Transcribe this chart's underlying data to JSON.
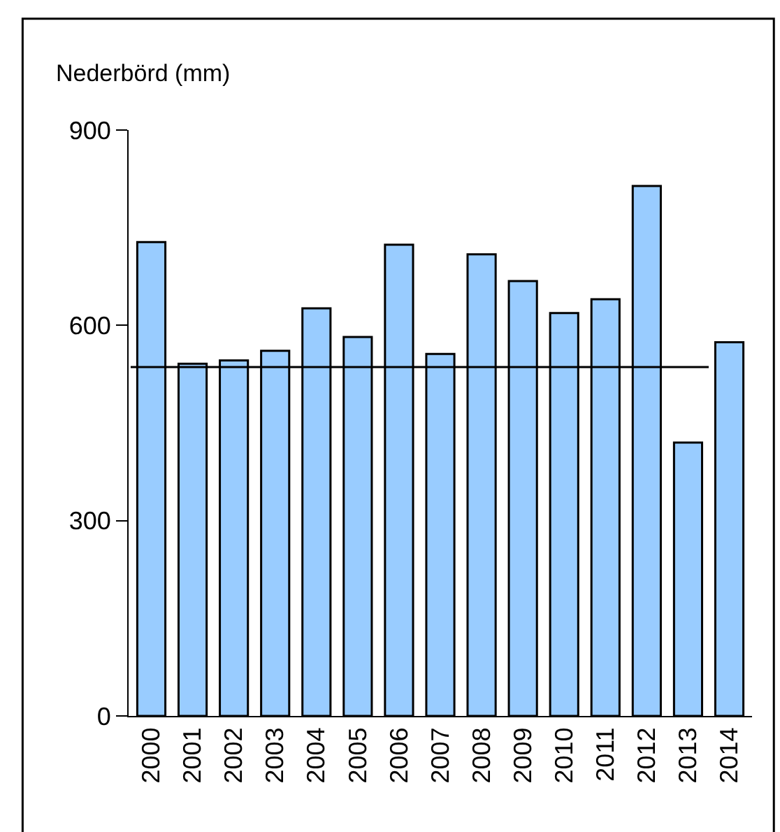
{
  "chart_data": {
    "type": "bar",
    "ylabel": "Nederbörd (mm)",
    "categories": [
      "2000",
      "2001",
      "2002",
      "2003",
      "2004",
      "2005",
      "2006",
      "2007",
      "2008",
      "2009",
      "2010",
      "2011",
      "2012",
      "2013",
      "2014"
    ],
    "values": [
      728,
      541,
      546,
      561,
      626,
      582,
      724,
      556,
      709,
      668,
      619,
      640,
      814,
      420,
      574
    ],
    "color": "#99ccff",
    "ylim": [
      0,
      900
    ],
    "yticks": [
      0,
      300,
      600,
      900
    ],
    "ref_lines": [
      {
        "axis": "y",
        "value": 536,
        "color": "#000000"
      }
    ]
  }
}
